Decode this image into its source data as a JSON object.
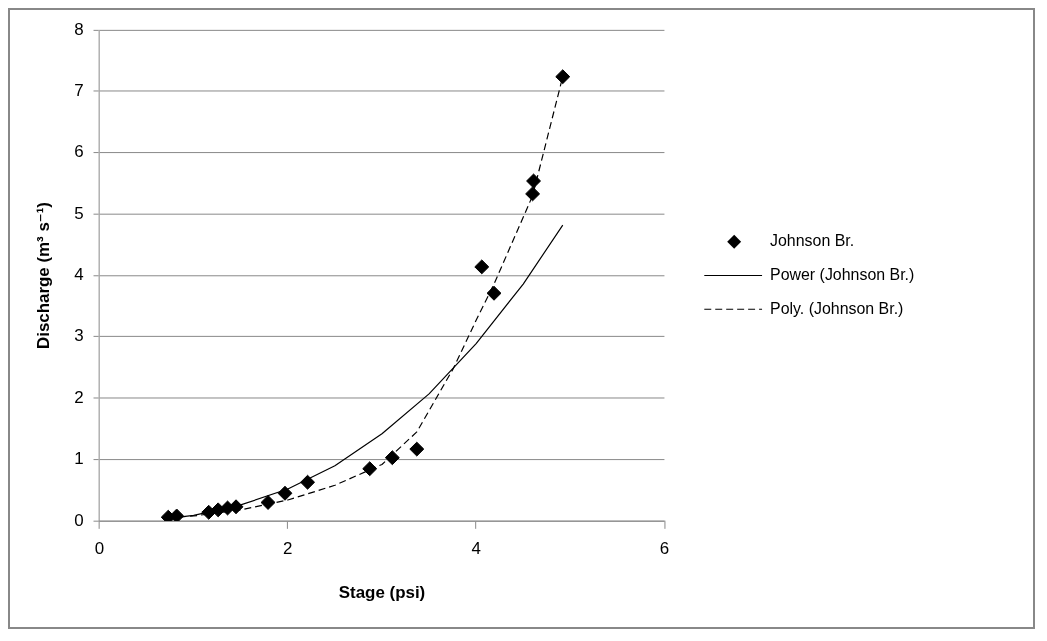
{
  "chart_data": {
    "type": "scatter",
    "xlabel": "Stage (psi)",
    "ylabel": "Discharge (m³ s⁻¹)",
    "xlim": [
      0,
      6
    ],
    "xticks": [
      0,
      2,
      4,
      6
    ],
    "ylim": [
      0,
      8
    ],
    "yticks": [
      0,
      1,
      2,
      3,
      4,
      5,
      6,
      7,
      8
    ],
    "grid": "y",
    "legend": "right",
    "series": [
      {
        "name": "Johnson Br.",
        "type": "scatter",
        "marker": "diamond",
        "color": "#000000",
        "x": [
          0.73,
          0.82,
          1.16,
          1.26,
          1.36,
          1.45,
          1.79,
          1.97,
          2.21,
          2.87,
          3.11,
          3.37,
          4.06,
          4.19,
          4.6,
          4.61,
          4.92
        ],
        "values": [
          0.06,
          0.08,
          0.14,
          0.18,
          0.21,
          0.23,
          0.3,
          0.45,
          0.63,
          0.85,
          1.03,
          1.17,
          4.14,
          3.71,
          5.33,
          5.54,
          7.24
        ]
      },
      {
        "name": "Power (Johnson Br.)",
        "type": "line",
        "marker": "none",
        "line_style": "solid",
        "color": "#000000",
        "x": [
          0.73,
          1,
          1.5,
          2,
          2.5,
          3,
          3.5,
          4,
          4.5,
          4.92
        ],
        "values": [
          0.04,
          0.09,
          0.26,
          0.52,
          0.9,
          1.42,
          2.07,
          2.89,
          3.86,
          4.82
        ]
      },
      {
        "name": "Poly. (Johnson Br.)",
        "type": "line",
        "marker": "none",
        "line_style": "dashed",
        "color": "#000000",
        "x": [
          0.73,
          1,
          1.5,
          2,
          2.5,
          3,
          3.37,
          3.76,
          4,
          4.19,
          4.6,
          4.92
        ],
        "values": [
          0.05,
          0.08,
          0.18,
          0.34,
          0.58,
          0.92,
          1.45,
          2.49,
          3.27,
          3.86,
          5.3,
          7.24
        ]
      }
    ]
  }
}
